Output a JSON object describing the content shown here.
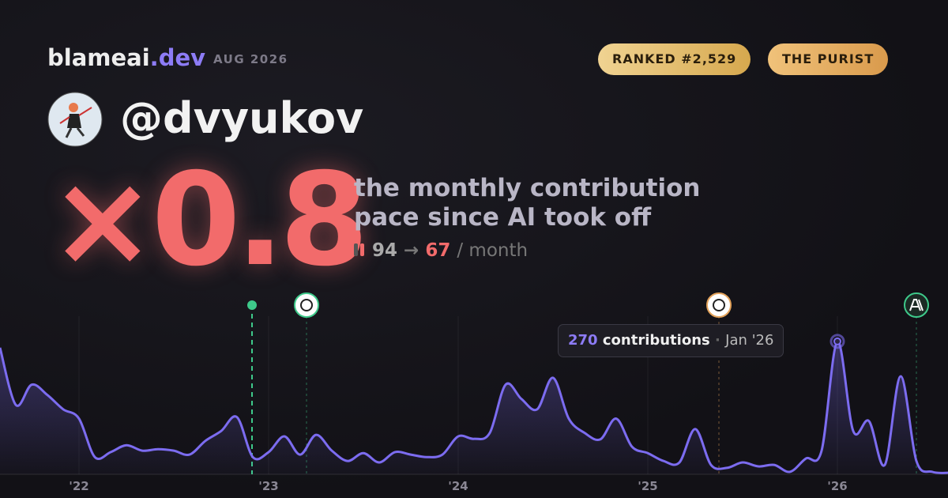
{
  "header": {
    "brand": "blameai",
    "brand_suffix": ".dev",
    "period": "AUG 2026",
    "badges": [
      "RANKED #2,529",
      "THE PURIST"
    ]
  },
  "profile": {
    "handle": "@dvyukov"
  },
  "headline": {
    "multiplier": "×0.8",
    "description_lines": [
      "the monthly contribution",
      "pace since AI took off"
    ],
    "before": 94,
    "arrow": "→",
    "after": 67,
    "unit": "/ month"
  },
  "tooltip": {
    "value": 270,
    "label": "contributions",
    "separator": "·",
    "date": "Jan '26"
  },
  "chart_data": {
    "type": "area",
    "x": [
      "2021-08",
      "2021-09",
      "2021-10",
      "2021-11",
      "2021-12",
      "2022-01",
      "2022-02",
      "2022-03",
      "2022-04",
      "2022-05",
      "2022-06",
      "2022-07",
      "2022-08",
      "2022-09",
      "2022-10",
      "2022-11",
      "2022-12",
      "2023-01",
      "2023-02",
      "2023-03",
      "2023-04",
      "2023-05",
      "2023-06",
      "2023-07",
      "2023-08",
      "2023-09",
      "2023-10",
      "2023-11",
      "2023-12",
      "2024-01",
      "2024-02",
      "2024-03",
      "2024-04",
      "2024-05",
      "2024-06",
      "2024-07",
      "2024-08",
      "2024-09",
      "2024-10",
      "2024-11",
      "2024-12",
      "2025-01",
      "2025-02",
      "2025-03",
      "2025-04",
      "2025-05",
      "2025-06",
      "2025-07",
      "2025-08",
      "2025-09",
      "2025-10",
      "2025-11",
      "2025-12",
      "2026-01",
      "2026-02",
      "2026-03",
      "2026-04",
      "2026-05",
      "2026-06",
      "2026-07",
      "2026-08"
    ],
    "values": [
      257,
      141,
      182,
      161,
      132,
      113,
      35,
      45,
      59,
      48,
      51,
      48,
      40,
      68,
      88,
      116,
      35,
      45,
      77,
      40,
      80,
      48,
      27,
      43,
      24,
      45,
      40,
      35,
      40,
      77,
      72,
      84,
      182,
      153,
      132,
      196,
      113,
      84,
      71,
      113,
      56,
      43,
      27,
      24,
      92,
      19,
      13,
      24,
      16,
      19,
      5,
      32,
      48,
      270,
      88,
      108,
      19,
      199,
      27,
      5,
      3
    ],
    "color": "#7c6cf0",
    "ylim": [
      0,
      350
    ],
    "xticks": [
      {
        "value": "2022-01",
        "label": "'22"
      },
      {
        "value": "2023-01",
        "label": "'23"
      },
      {
        "value": "2024-01",
        "label": "'24"
      },
      {
        "value": "2025-01",
        "label": "'25"
      },
      {
        "value": "2026-01",
        "label": "'26"
      }
    ],
    "grid": true
  }
}
